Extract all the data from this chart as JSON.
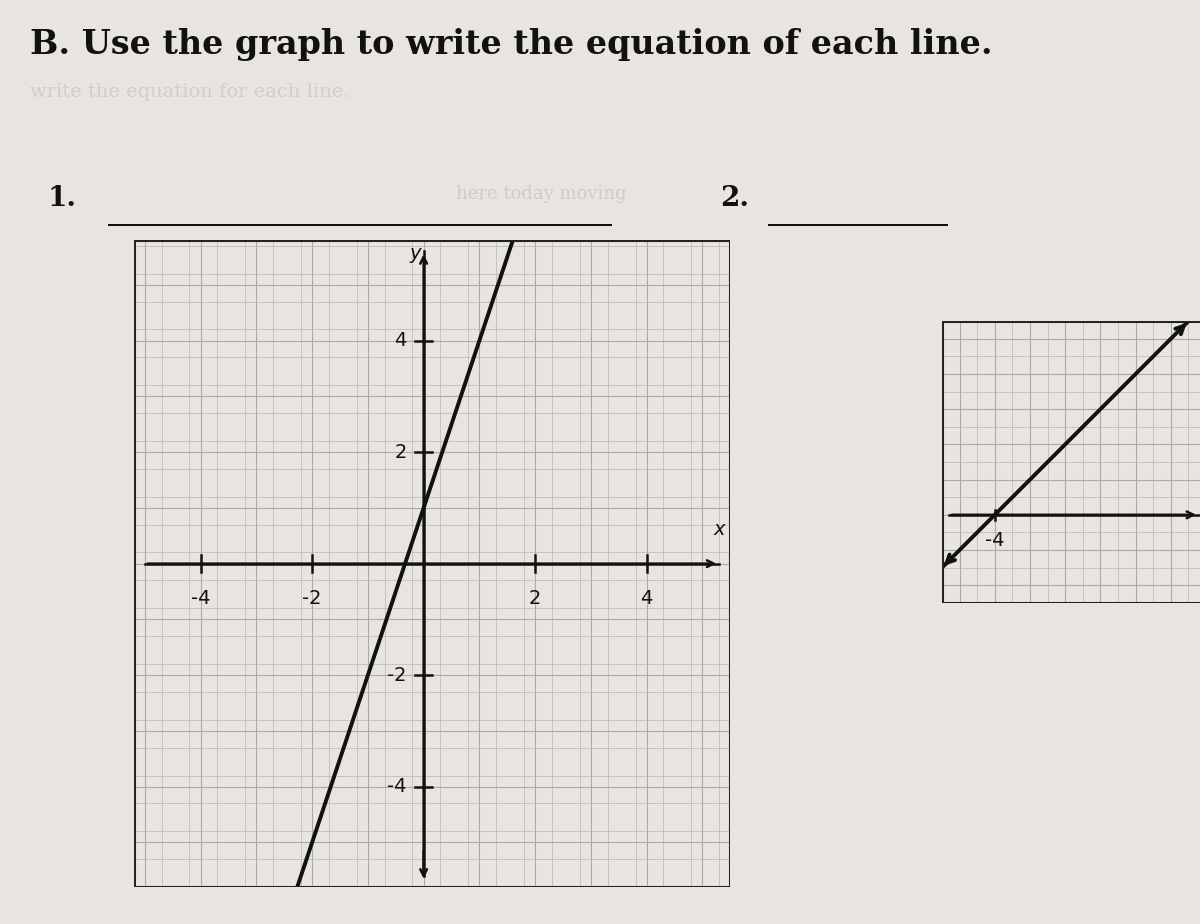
{
  "title": "B. Use the graph to write the equation of each line.",
  "label1": "1.",
  "label2": "2.",
  "bg_color": "#d8d4ce",
  "paper_color": "#e8e5e0",
  "graph1": {
    "xlim": [
      -5.2,
      5.5
    ],
    "ylim": [
      -5.8,
      5.8
    ],
    "xticks": [
      -4,
      -2,
      2,
      4
    ],
    "yticks": [
      -4,
      -2,
      2,
      4
    ],
    "line_slope": 3,
    "line_intercept": 1,
    "line_color": "#111111",
    "line_lw": 2.8
  },
  "graph2": {
    "xlim": [
      -5.5,
      2.0
    ],
    "ylim": [
      -2.5,
      5.5
    ],
    "xticks": [
      -4
    ],
    "line_slope": 1,
    "line_intercept": 4,
    "line_color": "#111111",
    "line_lw": 2.8
  },
  "grid_minor_color": "#aaaaaa",
  "grid_major_color": "#999999",
  "axis_color": "#111111",
  "tick_fontsize": 14,
  "title_fontsize": 24,
  "label_fontsize": 20
}
